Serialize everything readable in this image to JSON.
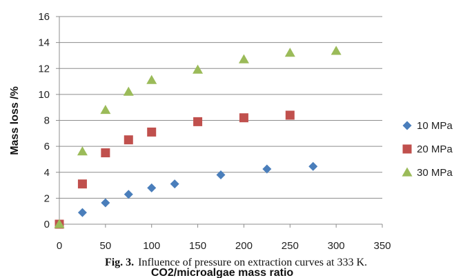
{
  "chart_data": {
    "type": "scatter",
    "title": "",
    "xlabel": "CO2/microalgae mass ratio",
    "ylabel": "Mass loss /%",
    "xlim": [
      0,
      350
    ],
    "ylim": [
      0,
      16
    ],
    "xticks": [
      0,
      50,
      100,
      150,
      200,
      250,
      300,
      350
    ],
    "yticks": [
      0,
      2,
      4,
      6,
      8,
      10,
      12,
      14,
      16
    ],
    "grid": "horizontal",
    "legend_position": "right",
    "series": [
      {
        "name": "10 MPa",
        "marker": "diamond",
        "color": "#4a7ebb",
        "x": [
          0,
          25,
          50,
          75,
          100,
          125,
          175,
          225,
          275
        ],
        "y": [
          0,
          0.9,
          1.65,
          2.3,
          2.8,
          3.1,
          3.8,
          4.25,
          4.45
        ]
      },
      {
        "name": "20 MPa",
        "marker": "square",
        "color": "#c0504d",
        "x": [
          0,
          25,
          50,
          75,
          100,
          150,
          200,
          250
        ],
        "y": [
          0,
          3.1,
          5.5,
          6.5,
          7.1,
          7.9,
          8.2,
          8.4
        ]
      },
      {
        "name": "30 MPa",
        "marker": "triangle",
        "color": "#9bbb59",
        "x": [
          0,
          25,
          50,
          75,
          100,
          150,
          200,
          250,
          300
        ],
        "y": [
          0,
          5.6,
          8.8,
          10.2,
          11.1,
          11.9,
          12.7,
          13.2,
          13.35
        ]
      }
    ]
  },
  "caption": {
    "label": "Fig. 3.",
    "text": "Influence of pressure on extraction curves at 333 K."
  }
}
